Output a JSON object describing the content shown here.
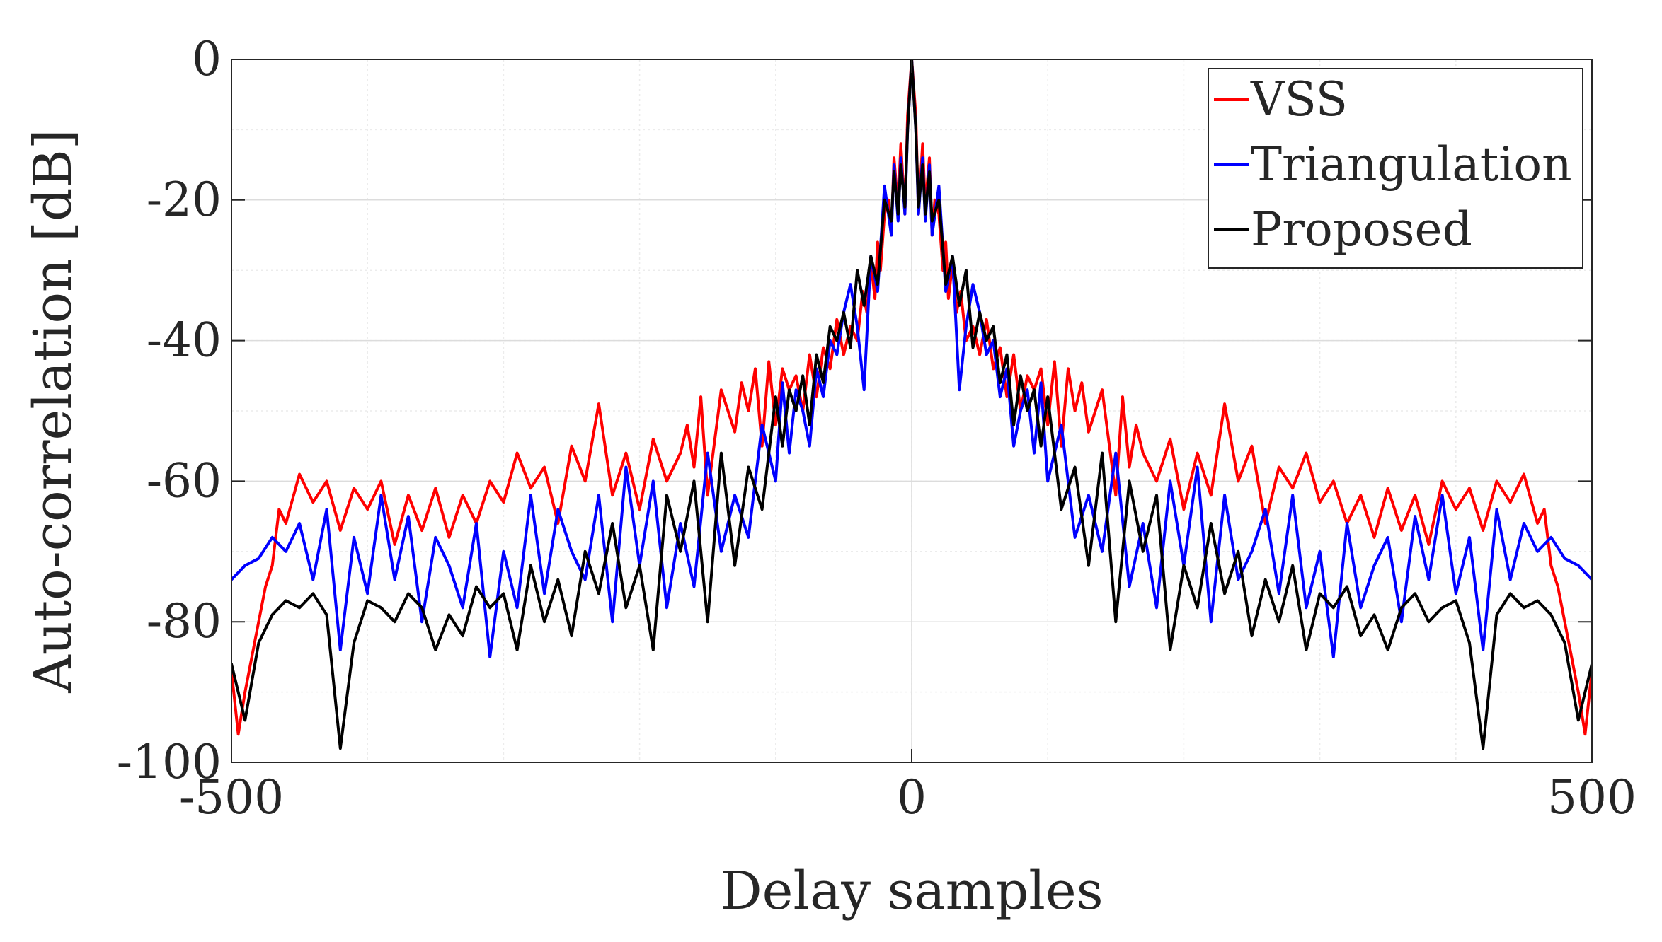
{
  "chart_data": {
    "type": "line",
    "title": "",
    "xlabel": "Delay samples",
    "ylabel": "Auto-correlation [dB]",
    "xlim": [
      -500,
      500
    ],
    "ylim": [
      -100,
      0
    ],
    "x_ticks": [
      -500,
      0,
      500
    ],
    "x_tick_labels": [
      "-500",
      "0",
      "500"
    ],
    "y_ticks": [
      0,
      -20,
      -40,
      -60,
      -80,
      -100
    ],
    "y_tick_labels": [
      "0",
      "-20",
      "-40",
      "-60",
      "-80",
      "-100"
    ],
    "x_minor_grid_step": 100,
    "y_minor_grid_step": 10,
    "grid": true,
    "legend_position": "top-right",
    "symmetric_about_zero": true,
    "series": [
      {
        "name": "VSS",
        "color": "#ff0000",
        "x": [
          0,
          3,
          5,
          8,
          10,
          13,
          15,
          17,
          20,
          23,
          25,
          27,
          30,
          33,
          36,
          40,
          45,
          50,
          55,
          60,
          65,
          70,
          75,
          80,
          85,
          90,
          95,
          100,
          105,
          110,
          115,
          120,
          125,
          130,
          140,
          150,
          155,
          160,
          165,
          170,
          180,
          190,
          200,
          210,
          220,
          230,
          240,
          250,
          260,
          270,
          280,
          290,
          300,
          310,
          320,
          330,
          340,
          350,
          360,
          370,
          380,
          390,
          400,
          410,
          420,
          430,
          440,
          450,
          460,
          465,
          470,
          475,
          480,
          485,
          490,
          495,
          500
        ],
        "y": [
          0,
          -8,
          -22,
          -12,
          -21,
          -14,
          -25,
          -20,
          -22,
          -30,
          -26,
          -34,
          -29,
          -36,
          -33,
          -40,
          -38,
          -42,
          -37,
          -44,
          -41,
          -48,
          -42,
          -50,
          -45,
          -47,
          -44,
          -52,
          -43,
          -55,
          -44,
          -50,
          -46,
          -53,
          -47,
          -62,
          -48,
          -58,
          -52,
          -56,
          -60,
          -54,
          -64,
          -56,
          -62,
          -49,
          -60,
          -55,
          -66,
          -58,
          -61,
          -56,
          -63,
          -60,
          -66,
          -62,
          -68,
          -61,
          -67,
          -62,
          -69,
          -60,
          -64,
          -61,
          -67,
          -60,
          -63,
          -59,
          -66,
          -64,
          -72,
          -75,
          -80,
          -85,
          -90,
          -96,
          -87
        ]
      },
      {
        "name": "Triangulation",
        "color": "#0000ff",
        "x": [
          0,
          3,
          5,
          8,
          10,
          13,
          15,
          20,
          25,
          30,
          35,
          40,
          45,
          50,
          55,
          60,
          65,
          70,
          75,
          80,
          85,
          90,
          95,
          100,
          110,
          120,
          130,
          140,
          150,
          160,
          170,
          180,
          190,
          200,
          210,
          220,
          230,
          240,
          250,
          260,
          270,
          280,
          290,
          300,
          310,
          320,
          330,
          340,
          350,
          360,
          370,
          380,
          390,
          400,
          410,
          420,
          430,
          440,
          450,
          460,
          470,
          480,
          490,
          500
        ],
        "y": [
          0,
          -10,
          -22,
          -14,
          -23,
          -15,
          -25,
          -18,
          -33,
          -28,
          -47,
          -38,
          -32,
          -36,
          -42,
          -40,
          -48,
          -44,
          -55,
          -50,
          -47,
          -56,
          -46,
          -60,
          -52,
          -68,
          -62,
          -70,
          -56,
          -75,
          -66,
          -78,
          -60,
          -72,
          -58,
          -80,
          -62,
          -74,
          -70,
          -64,
          -76,
          -62,
          -78,
          -70,
          -85,
          -66,
          -78,
          -72,
          -68,
          -80,
          -65,
          -74,
          -62,
          -76,
          -68,
          -84,
          -64,
          -74,
          -66,
          -70,
          -68,
          -71,
          -72,
          -74
        ]
      },
      {
        "name": "Proposed",
        "color": "#000000",
        "x": [
          0,
          3,
          5,
          8,
          10,
          13,
          15,
          20,
          25,
          30,
          35,
          40,
          45,
          50,
          55,
          60,
          65,
          70,
          75,
          80,
          85,
          90,
          95,
          100,
          110,
          120,
          130,
          140,
          150,
          160,
          170,
          180,
          190,
          200,
          210,
          220,
          230,
          240,
          250,
          260,
          270,
          280,
          290,
          300,
          310,
          320,
          330,
          340,
          350,
          360,
          370,
          380,
          390,
          400,
          410,
          420,
          430,
          440,
          450,
          460,
          470,
          480,
          490,
          500
        ],
        "y": [
          0,
          -10,
          -21,
          -15,
          -22,
          -16,
          -23,
          -20,
          -32,
          -28,
          -35,
          -30,
          -41,
          -36,
          -40,
          -38,
          -46,
          -42,
          -52,
          -45,
          -50,
          -47,
          -55,
          -48,
          -64,
          -58,
          -72,
          -56,
          -80,
          -60,
          -70,
          -62,
          -84,
          -72,
          -78,
          -66,
          -76,
          -70,
          -82,
          -74,
          -80,
          -72,
          -84,
          -76,
          -78,
          -75,
          -82,
          -79,
          -84,
          -78,
          -76,
          -80,
          -78,
          -77,
          -83,
          -98,
          -79,
          -76,
          -78,
          -77,
          -79,
          -83,
          -94,
          -86
        ]
      }
    ]
  }
}
